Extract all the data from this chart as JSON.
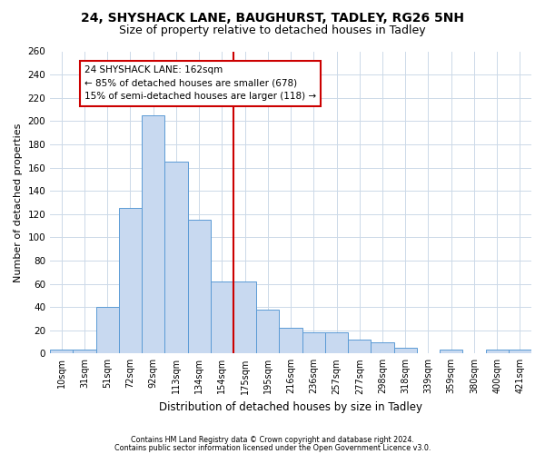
{
  "title1": "24, SHYSHACK LANE, BAUGHURST, TADLEY, RG26 5NH",
  "title2": "Size of property relative to detached houses in Tadley",
  "xlabel": "Distribution of detached houses by size in Tadley",
  "ylabel": "Number of detached properties",
  "footnote1": "Contains HM Land Registry data © Crown copyright and database right 2024.",
  "footnote2": "Contains public sector information licensed under the Open Government Licence v3.0.",
  "bar_labels": [
    "10sqm",
    "31sqm",
    "51sqm",
    "72sqm",
    "92sqm",
    "113sqm",
    "134sqm",
    "154sqm",
    "175sqm",
    "195sqm",
    "216sqm",
    "236sqm",
    "257sqm",
    "277sqm",
    "298sqm",
    "318sqm",
    "339sqm",
    "359sqm",
    "380sqm",
    "400sqm",
    "421sqm"
  ],
  "bar_values": [
    3,
    3,
    40,
    125,
    205,
    165,
    115,
    62,
    62,
    38,
    22,
    18,
    18,
    12,
    10,
    5,
    0,
    3,
    0,
    3,
    3
  ],
  "bar_color": "#c8d9f0",
  "bar_edge_color": "#5b9bd5",
  "vline_x": 7.5,
  "vline_color": "#cc0000",
  "annotation_text": "24 SHYSHACK LANE: 162sqm\n← 85% of detached houses are smaller (678)\n15% of semi-detached houses are larger (118) →",
  "annotation_box_color": "#cc0000",
  "annotation_bg": "white",
  "ylim": [
    0,
    260
  ],
  "yticks": [
    0,
    20,
    40,
    60,
    80,
    100,
    120,
    140,
    160,
    180,
    200,
    220,
    240,
    260
  ],
  "grid_color": "#ccd9e8",
  "background_color": "white",
  "title_fontsize": 10,
  "subtitle_fontsize": 9,
  "bar_width": 1.0,
  "figwidth": 6.0,
  "figheight": 5.0,
  "dpi": 100
}
